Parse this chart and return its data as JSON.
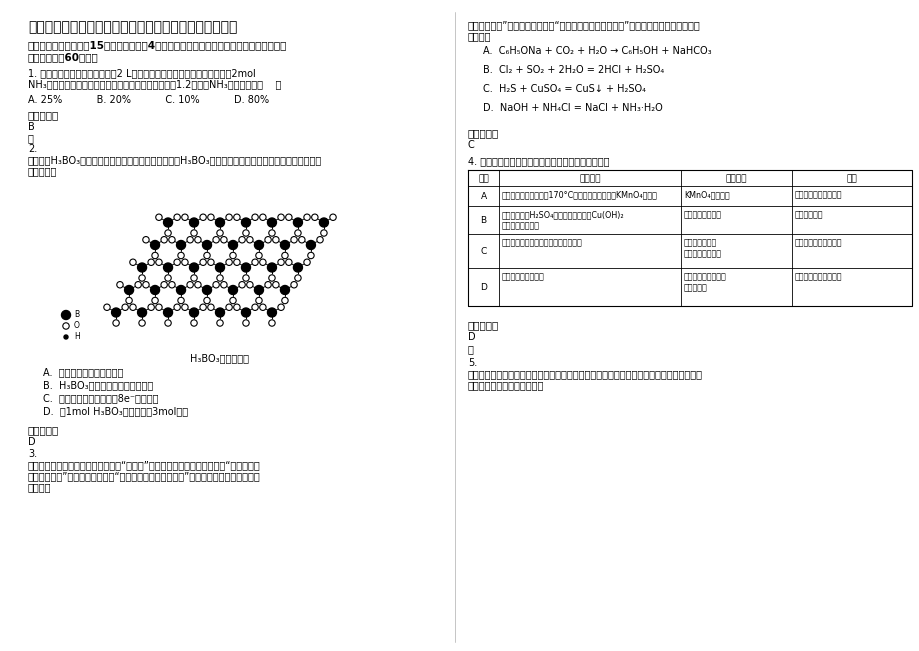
{
  "bg_color": "#ffffff",
  "title": "湖北省襄阳市襄樊烟厂子弟学校高二化学期末试卷含解析",
  "section1_header": "一、单选题（本大题入15个小题，每小题4分。在每小题给出的四个选项中，只有一项符合\n题目要求，全60分。）",
  "q1_text": "1. 在一定温度下，向一个容积为2 L的密闭容器内（预先加入催化剂）通入2mol\nNH₃，经过一段时间后，测得容器内的压强为起始时的1.2倍，则NH₃的转化率为（    ）",
  "q1_options": "A. 25%           B. 20%           C. 10%           D. 80%",
  "q1_answer_header": "参考答案：",
  "q1_answer": "B",
  "q1_explain": "略",
  "q2_num": "2.",
  "q2_text": "正垄酸（H₃BO₃）是一种片层状结构白色品体。层内的H₃BO₃分子通过氢键相连（如右图）。下列有关说\n法正确的是",
  "q2_caption": "H₃BO₃的层状结构",
  "q2_options": [
    "A.  正垄酸品体属于原子晶体",
    "B.  H₃BO₃分子的稳定性与氢键有关",
    "C.  分子中垄原子最外层为8e⁻稳定结构",
    "D.  含1mol H₃BO₃的晶体中有3mol氢键"
  ],
  "q2_answer_header": "参考答案：",
  "q2_answer": "D",
  "q3_num": "3.",
  "q3_text": "某同学总结出：中学化学反应中存在“强制弱”的反应规律，如复分解反应中“较强电解质\n制较弱电解质”；氧化还原反应中“较强氧化剂制较弱氧化剂”等。下列反应中不符合上述\n规律的是",
  "q3_options": [
    "A.  C₆H₅ONa + CO₂ + H₂O → C₆H₅OH + NaHCO₃",
    "B.  Cl₂ + SO₂ + 2H₂O = 2HCl + H₂SO₄",
    "C.  H₂S + CuSO₄ = CuS↓ + H₂SO₄",
    "D.  NaOH + NH₄Cl = NaCl + NH₃·H₂O"
  ],
  "q3_answer_header": "参考答案：",
  "q3_answer": "C",
  "q3_cont1": "制较弱电解质”；氧化还原反应中“较强氧化剂制较弱氧化剂”等。下列反应中不符合上述",
  "q3_cont2": "规律的是",
  "q4_header": "4. 下列实验操作、实验现象及解释与结论都正确的是",
  "table_col0": "编号",
  "table_col1": "实验操作",
  "table_col2": "实验现象",
  "table_col3": "解释",
  "table_rows": [
    [
      "A",
      "将乙醇与浓硫酸共热至170°C，所得气体通入酸性KMnO₄溶液中",
      "KMnO₄溶液褮色",
      "乙醇发生消去反应，气"
    ],
    [
      "B",
      "淠粉溶液和稀H₂SO₄混合加热，加新制Cu(OH)₂\n悬浊液加热至沫腾",
      "有砖红色沉淠产生",
      "淠粉发生水解"
    ],
    [
      "C",
      "向甲苯中滴入适量浓渴水，振荡，静置",
      "溶液上层呈橙红\n色，下层几乎无色",
      "甲苯和渴发生取代反应"
    ],
    [
      "D",
      "向蔗糖中加入浓硫酸",
      "放热，变黑膨胀，有\n岖激性气味",
      "浓硫酸有脔水性和强氧"
    ]
  ],
  "q4_answer_header": "参考答案：",
  "q4_answer": "D",
  "q4_explain": "略",
  "q5_num": "5.",
  "q5_text": "二十世纪化学合成技术的发展对人类健康水平和生活质量的提高做出了巨大贡献。下列各组\n物质全部由化学合成得到的是"
}
